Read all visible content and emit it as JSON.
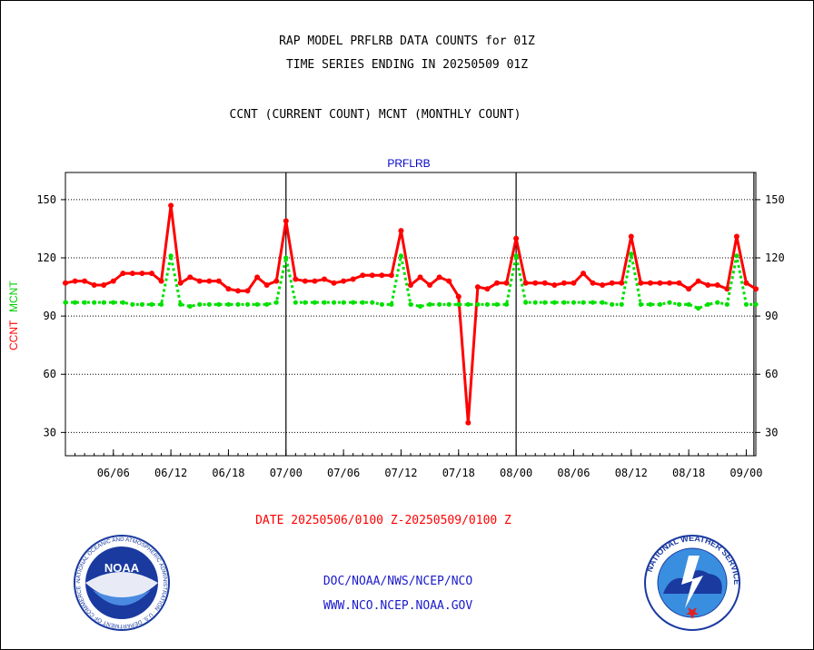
{
  "header": {
    "title_line1": "RAP MODEL PRFLRB DATA COUNTS for 01Z",
    "title_line2": "TIME SERIES ENDING IN 20250509 01Z",
    "subtitle": "CCNT (CURRENT COUNT) MCNT (MONTHLY COUNT)"
  },
  "chart_data": {
    "type": "line",
    "title": "PRFLRB",
    "ylabel_ccnt": "CCNT",
    "ylabel_mcnt": "MCNT",
    "ylim": [
      18,
      164
    ],
    "yticks": [
      30,
      60,
      90,
      120,
      150
    ],
    "xlim": [
      0,
      72
    ],
    "xtick_labels": [
      "06/06",
      "06/12",
      "06/18",
      "07/00",
      "07/06",
      "07/12",
      "07/18",
      "08/00",
      "08/06",
      "08/12",
      "08/18",
      "09/00"
    ],
    "xtick_hours": [
      5,
      11,
      17,
      23,
      29,
      35,
      41,
      47,
      53,
      59,
      65,
      71
    ],
    "day_boundaries": [
      23,
      47,
      71.8
    ],
    "grid": true,
    "series": [
      {
        "name": "CCNT",
        "color": "#ff0000",
        "x": [
          0,
          1,
          2,
          3,
          4,
          5,
          6,
          7,
          8,
          9,
          10,
          11,
          12,
          13,
          14,
          15,
          16,
          17,
          18,
          19,
          20,
          21,
          22,
          23,
          24,
          25,
          26,
          27,
          28,
          29,
          30,
          31,
          32,
          33,
          34,
          35,
          36,
          37,
          38,
          39,
          40,
          41,
          42,
          43,
          44,
          45,
          46,
          47,
          48,
          49,
          50,
          51,
          52,
          53,
          54,
          55,
          56,
          57,
          58,
          59,
          60,
          61,
          62,
          63,
          64,
          65,
          66,
          67,
          68,
          69,
          70,
          71,
          72
        ],
        "values": [
          107,
          108,
          108,
          106,
          106,
          108,
          112,
          112,
          112,
          112,
          108,
          147,
          107,
          110,
          108,
          108,
          108,
          104,
          103,
          103,
          110,
          106,
          108,
          139,
          109,
          108,
          108,
          109,
          107,
          108,
          109,
          111,
          111,
          111,
          111,
          134,
          106,
          110,
          106,
          110,
          108,
          100,
          35,
          105,
          104,
          107,
          107,
          130,
          107,
          107,
          107,
          106,
          107,
          107,
          112,
          107,
          106,
          107,
          107,
          131,
          107,
          107,
          107,
          107,
          107,
          104,
          108,
          106,
          106,
          104,
          131,
          107,
          104
        ]
      },
      {
        "name": "MCNT",
        "color": "#00e000",
        "x": [
          0,
          1,
          2,
          3,
          4,
          5,
          6,
          7,
          8,
          9,
          10,
          11,
          12,
          13,
          14,
          15,
          16,
          17,
          18,
          19,
          20,
          21,
          22,
          23,
          24,
          25,
          26,
          27,
          28,
          29,
          30,
          31,
          32,
          33,
          34,
          35,
          36,
          37,
          38,
          39,
          40,
          41,
          42,
          43,
          44,
          45,
          46,
          47,
          48,
          49,
          50,
          51,
          52,
          53,
          54,
          55,
          56,
          57,
          58,
          59,
          60,
          61,
          62,
          63,
          64,
          65,
          66,
          67,
          68,
          69,
          70,
          71,
          72
        ],
        "values": [
          97,
          97,
          97,
          97,
          97,
          97,
          97,
          96,
          96,
          96,
          96,
          121,
          96,
          95,
          96,
          96,
          96,
          96,
          96,
          96,
          96,
          96,
          97,
          120,
          97,
          97,
          97,
          97,
          97,
          97,
          97,
          97,
          97,
          96,
          96,
          121,
          96,
          95,
          96,
          96,
          96,
          96,
          96,
          96,
          96,
          96,
          96,
          121,
          97,
          97,
          97,
          97,
          97,
          97,
          97,
          97,
          97,
          96,
          96,
          122,
          96,
          96,
          96,
          97,
          96,
          96,
          94,
          96,
          97,
          96,
          121,
          96,
          96
        ]
      }
    ],
    "xlabel": "DATE 20250506/0100 Z-20250509/0100 Z"
  },
  "footer": {
    "line1": "DOC/NOAA/NWS/NCEP/NCO",
    "line2": "WWW.NCO.NCEP.NOAA.GOV",
    "noaa_text": "NOAA",
    "noaa_ring": "NATIONAL OCEANIC AND ATMOSPHERIC ADMINISTRATION · U.S. DEPARTMENT OF COMMERCE ·",
    "nws_ring": "NATIONAL WEATHER SERVICE"
  },
  "colors": {
    "title_blue": "#0000cc",
    "ccnt_red": "#ff0000",
    "mcnt_green": "#00e000",
    "grid": "#000000"
  }
}
